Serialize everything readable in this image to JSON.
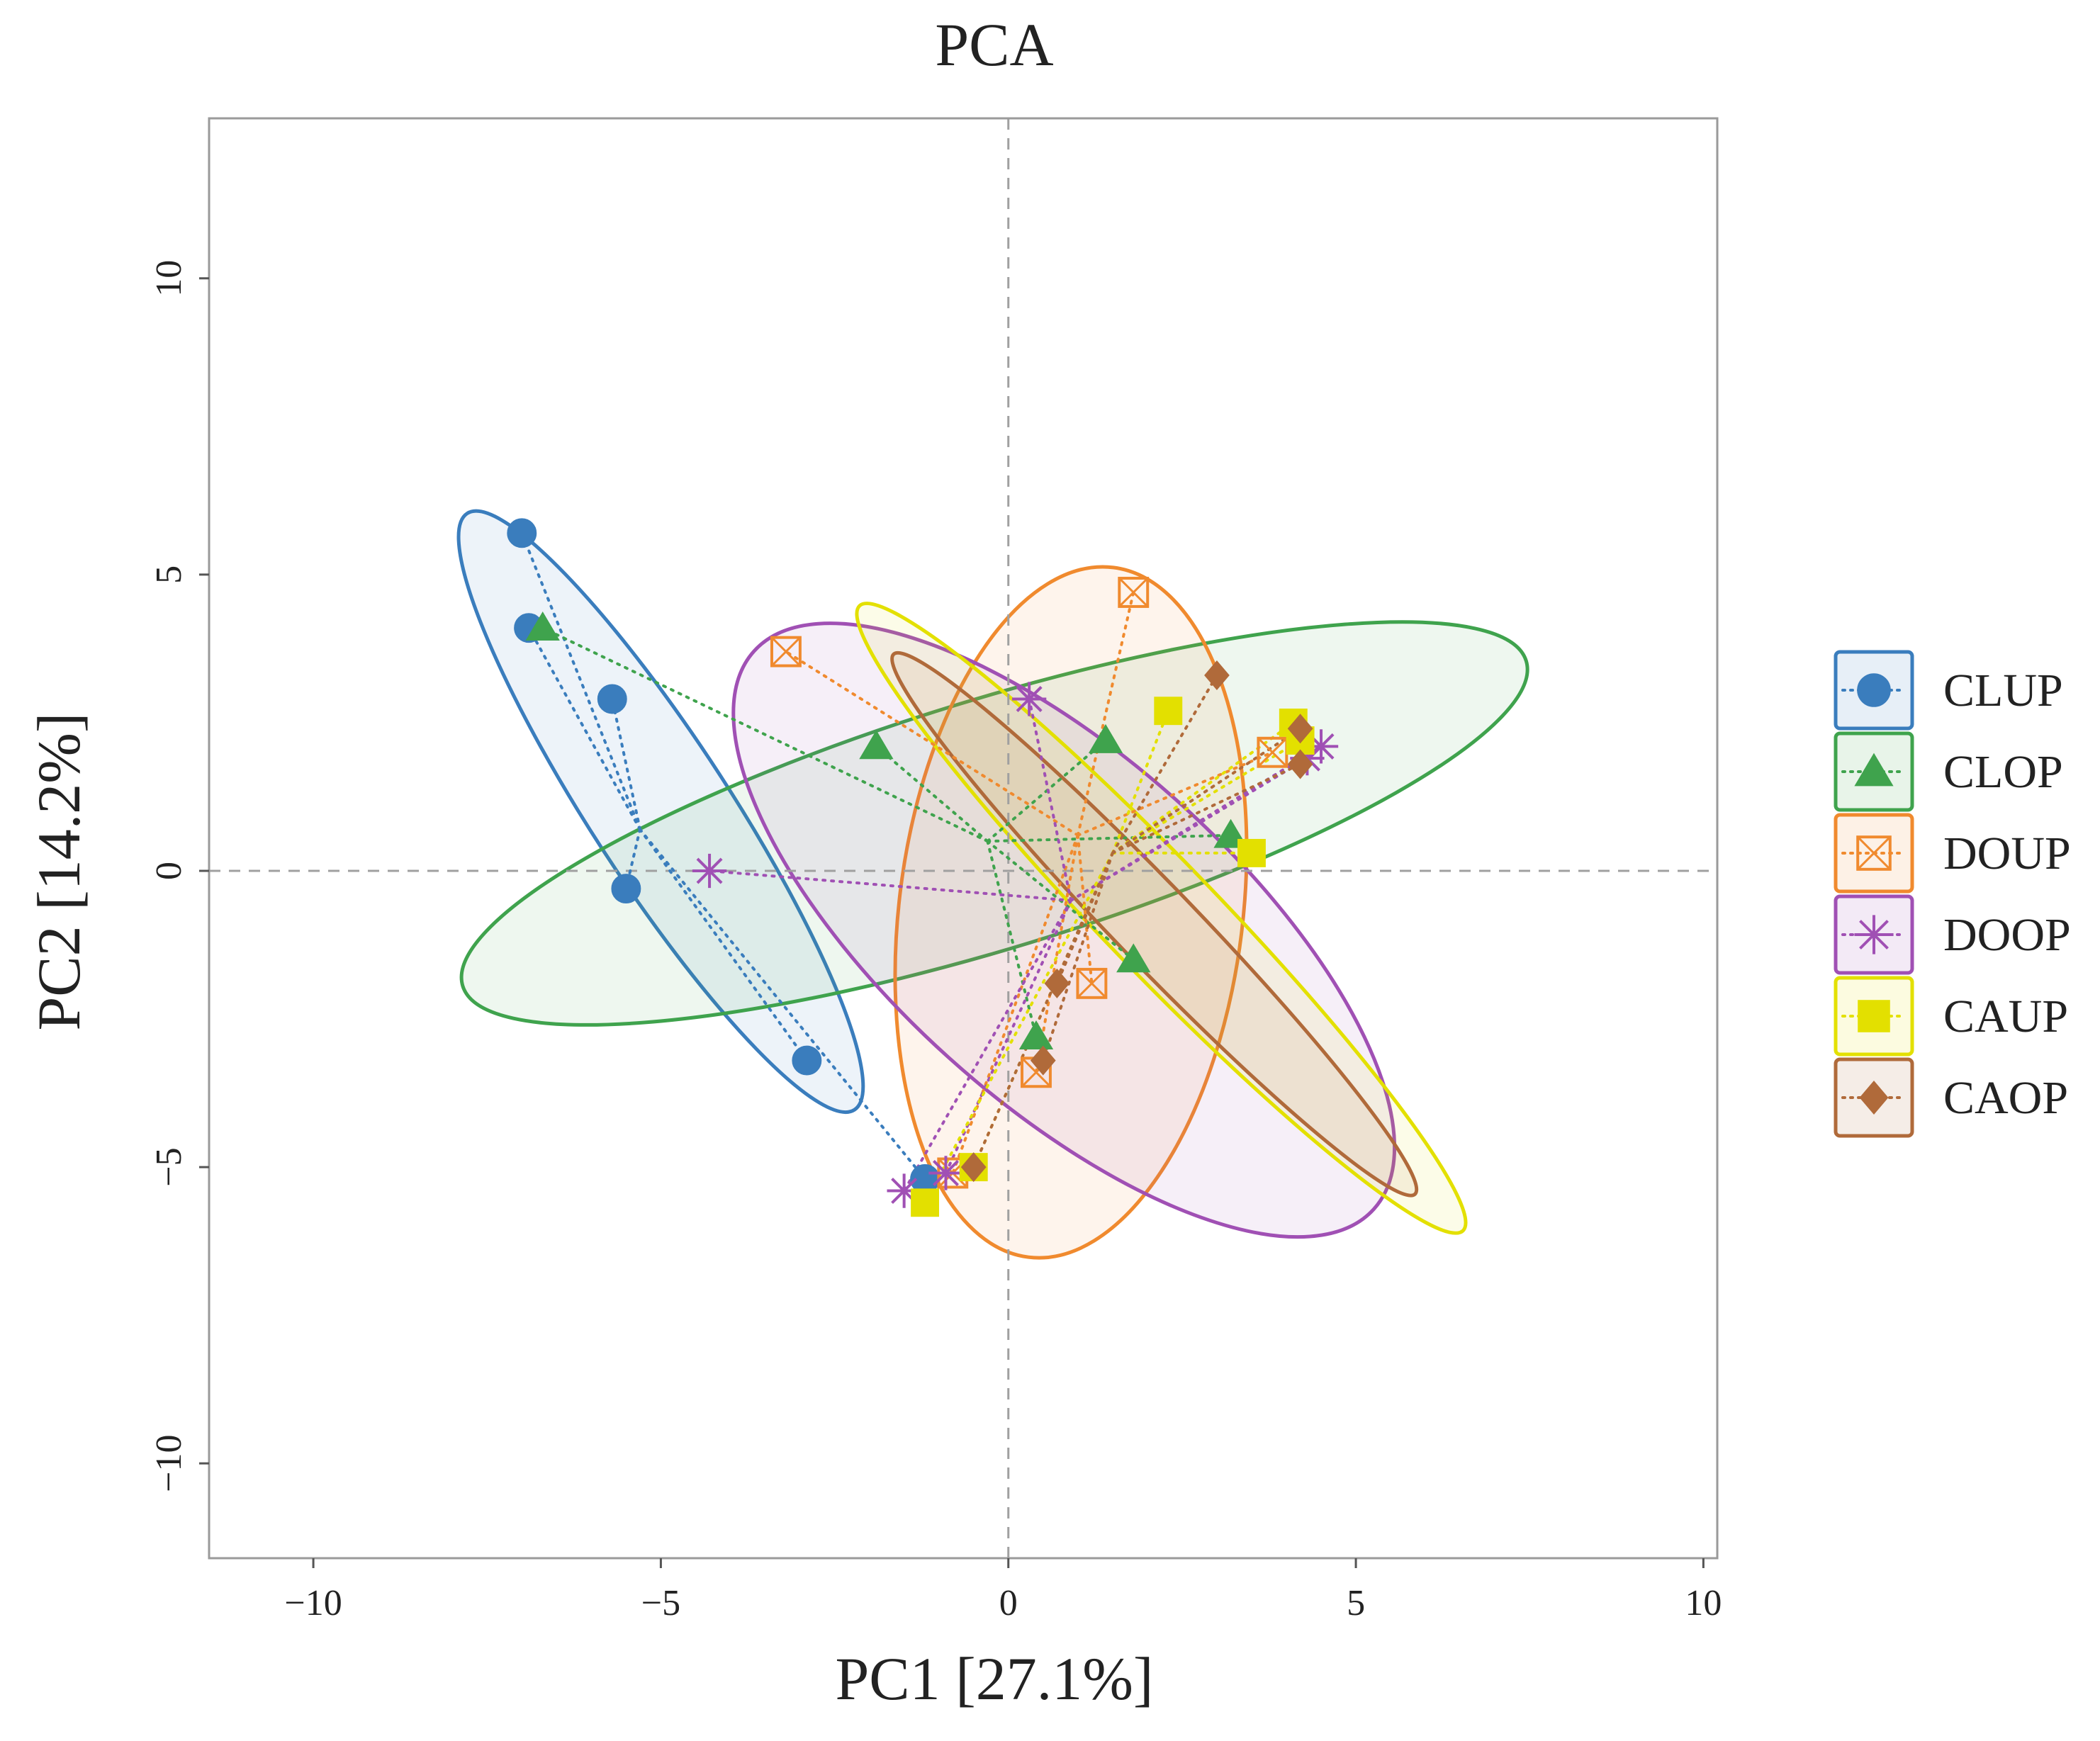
{
  "chart_data": {
    "type": "scatter",
    "title": "PCA",
    "xlabel": "PC1 [27.1%]",
    "ylabel": "PC2 [14.2%]",
    "xlim": [
      -11.5,
      10.2
    ],
    "ylim": [
      -11.6,
      12.7
    ],
    "xticks": [
      -10,
      -5,
      0,
      5,
      10
    ],
    "yticks": [
      -10,
      -5,
      0,
      5,
      10
    ],
    "xtick_labels": [
      "−10",
      "−5",
      "0",
      "5",
      "10"
    ],
    "ytick_labels": [
      "−10",
      "−5",
      "0",
      "5",
      "10"
    ],
    "reference_lines": {
      "x": 0,
      "y": 0
    },
    "legend_position": "right",
    "series": [
      {
        "name": "CLUP",
        "color": "#3a7dbd",
        "marker": "circle",
        "centroid": [
          -5.3,
          0.7
        ],
        "ellipse": {
          "center": [
            -5.0,
            1.0
          ],
          "rx": 2.0,
          "ry": 12.0,
          "angle": -33
        },
        "points": [
          [
            -7.0,
            5.7
          ],
          [
            -6.9,
            4.1
          ],
          [
            -5.7,
            2.9
          ],
          [
            -5.5,
            -0.3
          ],
          [
            -2.9,
            -3.2
          ],
          [
            -1.2,
            -5.2
          ]
        ]
      },
      {
        "name": "CLOP",
        "color": "#3fa34d",
        "marker": "triangle",
        "centroid": [
          -0.3,
          0.5
        ],
        "ellipse": {
          "center": [
            -0.2,
            0.8
          ],
          "rx": 16.0,
          "ry": 4.2,
          "angle": -17
        },
        "points": [
          [
            -6.7,
            4.1
          ],
          [
            -1.9,
            2.1
          ],
          [
            1.4,
            2.2
          ],
          [
            3.2,
            0.6
          ],
          [
            1.8,
            -1.5
          ],
          [
            0.4,
            -2.8
          ]
        ]
      },
      {
        "name": "DOUP",
        "color": "#f08a2e",
        "marker": "boxx",
        "centroid": [
          1.0,
          0.6
        ],
        "ellipse": {
          "center": [
            0.9,
            -0.7
          ],
          "rx": 10.0,
          "ry": 5.8,
          "angle": -83
        },
        "points": [
          [
            -3.2,
            3.7
          ],
          [
            1.8,
            4.7
          ],
          [
            3.8,
            2.0
          ],
          [
            1.2,
            -1.9
          ],
          [
            0.4,
            -3.4
          ],
          [
            -0.8,
            -5.1
          ]
        ]
      },
      {
        "name": "DOOP",
        "color": "#a050b4",
        "marker": "star",
        "centroid": [
          0.9,
          -0.5
        ],
        "ellipse": {
          "center": [
            0.8,
            -1.0
          ],
          "rx": 12.0,
          "ry": 5.8,
          "angle": 42
        },
        "points": [
          [
            -4.3,
            0.0
          ],
          [
            0.3,
            2.9
          ],
          [
            4.5,
            2.1
          ],
          [
            4.3,
            1.9
          ],
          [
            -1.5,
            -5.4
          ],
          [
            -0.9,
            -5.1
          ]
        ]
      },
      {
        "name": "CAUP",
        "color": "#e3e000",
        "marker": "square",
        "centroid": [
          1.5,
          0.3
        ],
        "ellipse": {
          "center": [
            2.2,
            -0.8
          ],
          "rx": 12.5,
          "ry": 1.9,
          "angle": 46
        },
        "points": [
          [
            -1.2,
            -5.6
          ],
          [
            -0.5,
            -5.0
          ],
          [
            2.3,
            2.7
          ],
          [
            4.1,
            2.5
          ],
          [
            3.5,
            0.3
          ],
          [
            4.2,
            2.2
          ]
        ]
      },
      {
        "name": "CAOP",
        "color": "#b06a3a",
        "marker": "diamond",
        "centroid": [
          1.5,
          0.3
        ],
        "ellipse": {
          "center": [
            2.1,
            -0.9
          ],
          "rx": 10.8,
          "ry": 1.35,
          "angle": 46
        },
        "points": [
          [
            -0.5,
            -5.0
          ],
          [
            0.5,
            -3.2
          ],
          [
            0.7,
            -1.9
          ],
          [
            3.0,
            3.3
          ],
          [
            4.2,
            2.4
          ],
          [
            4.2,
            1.8
          ]
        ]
      }
    ]
  }
}
